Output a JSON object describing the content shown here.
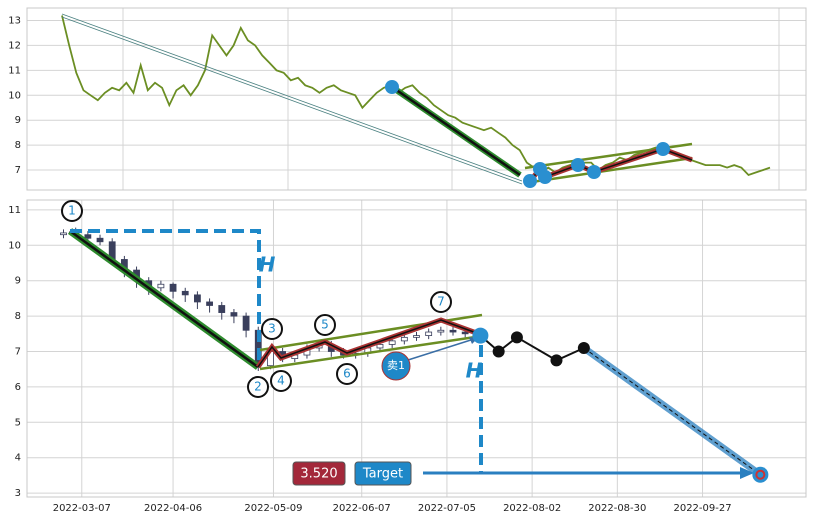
{
  "chart_data": [
    {
      "type": "line",
      "color": "#6b8e23",
      "values": [
        13.2,
        12.0,
        10.9,
        10.2,
        10.0,
        9.8,
        10.1,
        10.3,
        10.2,
        10.5,
        10.1,
        11.2,
        10.2,
        10.5,
        10.3,
        9.6,
        10.2,
        10.4,
        10.0,
        10.4,
        11.0,
        12.4,
        12.0,
        11.6,
        12.0,
        12.7,
        12.2,
        12.0,
        11.6,
        11.3,
        11.0,
        10.9,
        10.6,
        10.7,
        10.4,
        10.3,
        10.1,
        10.3,
        10.4,
        10.2,
        10.1,
        10.0,
        9.5,
        9.8,
        10.1,
        10.3,
        10.4,
        10.1,
        10.3,
        10.4,
        10.1,
        9.9,
        9.6,
        9.4,
        9.2,
        9.1,
        8.9,
        8.8,
        8.7,
        8.6,
        8.7,
        8.5,
        8.3,
        8.0,
        7.8,
        7.3,
        7.1,
        6.9,
        7.1,
        6.9,
        7.1,
        7.2,
        7.3,
        7.3,
        7.3,
        7.0,
        7.2,
        7.3,
        7.5,
        7.4,
        7.6,
        7.7,
        7.8,
        7.9,
        7.8,
        7.7,
        7.6,
        7.5,
        7.4,
        7.3,
        7.2,
        7.2,
        7.2,
        7.1,
        7.2,
        7.1,
        6.8,
        6.9,
        7.0,
        7.1
      ],
      "ylim": [
        6.2,
        13.5
      ],
      "yticks": [
        7,
        8,
        9,
        10,
        11,
        12,
        13
      ],
      "grid": true
    },
    {
      "type": "candlestick",
      "up_color": "#ffffff",
      "down_color": "#3a3f5c",
      "x": [
        "2022-03-01",
        "2022-03-05",
        "2022-03-09",
        "2022-03-13",
        "2022-03-17",
        "2022-03-21",
        "2022-03-25",
        "2022-03-29",
        "2022-04-02",
        "2022-04-06",
        "2022-04-10",
        "2022-04-14",
        "2022-04-18",
        "2022-04-22",
        "2022-04-26",
        "2022-04-30",
        "2022-05-04",
        "2022-05-08",
        "2022-05-12",
        "2022-05-16",
        "2022-05-20",
        "2022-05-24",
        "2022-05-28",
        "2022-06-01",
        "2022-06-05",
        "2022-06-09",
        "2022-06-13",
        "2022-06-17",
        "2022-06-21",
        "2022-06-25",
        "2022-06-29",
        "2022-07-03",
        "2022-07-07",
        "2022-07-11",
        "2022-07-15"
      ],
      "open": [
        10.3,
        10.35,
        10.3,
        10.2,
        10.1,
        9.6,
        9.3,
        9.0,
        8.8,
        8.9,
        8.7,
        8.6,
        8.4,
        8.3,
        8.1,
        8.0,
        7.6,
        6.6,
        7.0,
        6.8,
        6.9,
        7.1,
        7.2,
        7.0,
        6.9,
        6.95,
        7.1,
        7.2,
        7.3,
        7.4,
        7.45,
        7.55,
        7.6,
        7.55,
        7.5
      ],
      "high": [
        10.45,
        10.5,
        10.4,
        10.3,
        10.2,
        9.7,
        9.4,
        9.1,
        9.0,
        8.95,
        8.8,
        8.7,
        8.5,
        8.4,
        8.2,
        8.1,
        7.7,
        7.15,
        7.1,
        7.0,
        7.2,
        7.3,
        7.3,
        7.1,
        7.05,
        7.2,
        7.3,
        7.4,
        7.5,
        7.55,
        7.65,
        7.7,
        7.7,
        7.6,
        7.6
      ],
      "low": [
        10.2,
        10.2,
        10.1,
        10.0,
        9.5,
        9.1,
        8.8,
        8.6,
        8.7,
        8.5,
        8.4,
        8.2,
        8.1,
        7.9,
        7.8,
        7.4,
        6.45,
        6.5,
        6.7,
        6.7,
        6.8,
        7.0,
        6.85,
        6.8,
        6.8,
        6.85,
        7.0,
        7.1,
        7.2,
        7.3,
        7.35,
        7.45,
        7.45,
        7.4,
        7.35
      ],
      "close": [
        10.35,
        10.3,
        10.2,
        10.1,
        9.6,
        9.3,
        9.0,
        8.8,
        8.9,
        8.7,
        8.6,
        8.4,
        8.3,
        8.1,
        8.0,
        7.6,
        6.6,
        7.0,
        6.8,
        6.9,
        7.1,
        7.2,
        7.0,
        6.9,
        6.95,
        7.1,
        7.2,
        7.3,
        7.4,
        7.45,
        7.55,
        7.6,
        7.55,
        7.5,
        7.45
      ],
      "projection": {
        "x": [
          "2022-07-16",
          "2022-07-22",
          "2022-07-28",
          "2022-08-10",
          "2022-08-19"
        ],
        "values": [
          7.45,
          7.0,
          7.4,
          6.75,
          7.1
        ]
      },
      "target": {
        "x": "2022-10-16",
        "value": 3.52,
        "value_label": "3.520",
        "label": "Target"
      },
      "pattern_points": [
        "1",
        "2",
        "3",
        "4",
        "5",
        "6",
        "7"
      ],
      "signal": "卖1",
      "height_marker": "H",
      "xlim": [
        "2022-02-17",
        "2022-10-31"
      ],
      "xticks": [
        "2022-03-07",
        "2022-04-06",
        "2022-05-09",
        "2022-06-07",
        "2022-07-05",
        "2022-08-02",
        "2022-08-30",
        "2022-09-27"
      ],
      "ylim": [
        2.89,
        11.28
      ],
      "yticks": [
        3,
        4,
        5,
        6,
        7,
        8,
        9,
        10,
        11
      ],
      "grid": true
    }
  ]
}
